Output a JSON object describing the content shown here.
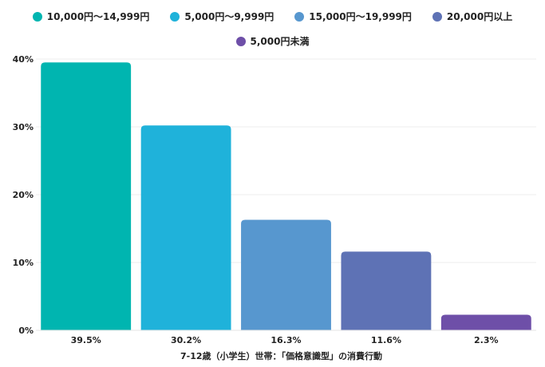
{
  "chart_data": {
    "type": "bar",
    "categories": [
      "10,000円～14,999円",
      "5,000円～9,999円",
      "15,000円～19,999円",
      "20,000円以上",
      "5,000円未満"
    ],
    "values": [
      39.5,
      30.2,
      16.3,
      11.6,
      2.3
    ],
    "value_labels": [
      "39.5%",
      "30.2%",
      "16.3%",
      "11.6%",
      "2.3%"
    ],
    "colors": [
      "#00B5B0",
      "#1FB2DA",
      "#5797CF",
      "#5E72B5",
      "#6E4FA8"
    ],
    "legend": [
      {
        "label": "10,000円～14,999円",
        "color": "#00B5B0"
      },
      {
        "label": "5,000円～9,999円",
        "color": "#1FB2DA"
      },
      {
        "label": "15,000円～19,999円",
        "color": "#5797CF"
      },
      {
        "label": "20,000円以上",
        "color": "#5E72B5"
      },
      {
        "label": "5,000円未満",
        "color": "#6E4FA8"
      }
    ],
    "legend_position": "top",
    "xlabel": "7-12歳（小学生）世帯：「価格意識型」の消費行動",
    "ylabel": "",
    "ylim": [
      0,
      40
    ],
    "yticks": [
      0,
      10,
      20,
      30,
      40
    ],
    "ytick_labels": [
      "0%",
      "10%",
      "20%",
      "30%",
      "40%"
    ],
    "grid": true
  }
}
